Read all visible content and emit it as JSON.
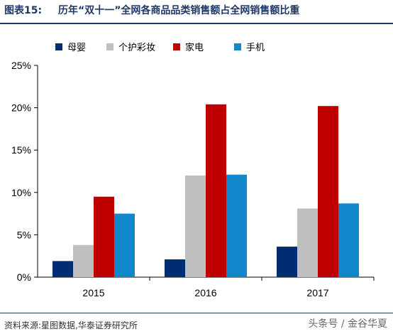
{
  "header": {
    "figure_label": "图表15:",
    "title": "历年“双十一”全网各商品品类销售额占全网销售额比重"
  },
  "chart_data": {
    "type": "bar",
    "categories": [
      "2015",
      "2016",
      "2017"
    ],
    "series": [
      {
        "name": "母婴",
        "color": "#002d72",
        "values": [
          1.9,
          2.1,
          3.6
        ]
      },
      {
        "name": "个护彩妆",
        "color": "#bfbfbf",
        "values": [
          3.8,
          12.0,
          8.1
        ]
      },
      {
        "name": "家电",
        "color": "#c00000",
        "values": [
          9.5,
          20.4,
          20.2
        ]
      },
      {
        "name": "手机",
        "color": "#1188cc",
        "values": [
          7.5,
          12.1,
          8.7
        ]
      }
    ],
    "yticks": [
      "0%",
      "5%",
      "10%",
      "15%",
      "20%",
      "25%"
    ],
    "ylim": [
      0,
      25
    ],
    "legend_position": "top",
    "grid": false
  },
  "footer": {
    "source": "资料来源:星图数据,华泰证券研究所",
    "watermark": "头条号 / 金谷华夏"
  }
}
